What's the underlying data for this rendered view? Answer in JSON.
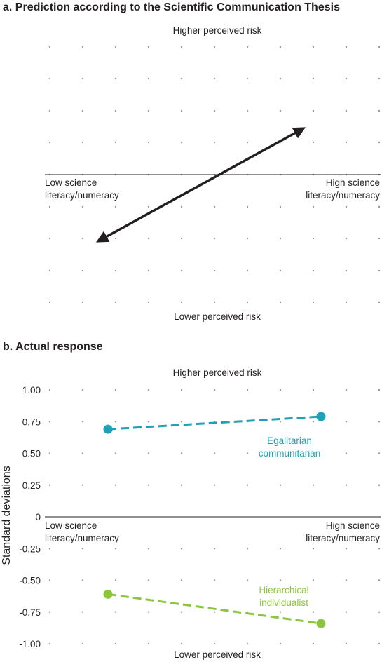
{
  "chart_data": [
    {
      "type": "line",
      "title": "a. Prediction according to the Scientific Communication Thesis",
      "top_label": "Higher perceived risk",
      "bottom_label": "Lower perceived risk",
      "left_label": "Low science\nliteracy/numeracy",
      "right_label": "High science\nliteracy/numeracy",
      "arrow": {
        "type": "double-headed",
        "color": "#231f20"
      },
      "grid": "dotted"
    },
    {
      "type": "line",
      "title": "b. Actual response",
      "top_label": "Higher perceived risk",
      "bottom_label": "Lower perceived risk",
      "left_label": "Low science\nliteracy/numeracy",
      "right_label": "High science\nliteracy/numeracy",
      "ylabel": "Standard deviations",
      "ylim": [
        -1.0,
        1.0
      ],
      "yticks": [
        "1.00",
        "0.75",
        "0.50",
        "0.25",
        "0",
        "-0.25",
        "-0.50",
        "-0.75",
        "-1.00"
      ],
      "x": [
        "Low science literacy/numeracy",
        "High science literacy/numeracy"
      ],
      "series": [
        {
          "name": "Egalitarian\ncommunitarian",
          "color": "#1fa0b4",
          "values": [
            0.69,
            0.79
          ]
        },
        {
          "name": "Hierarchical\nindividualist",
          "color": "#8cc63f",
          "values": [
            -0.61,
            -0.84
          ]
        }
      ],
      "grid": "dotted"
    }
  ]
}
